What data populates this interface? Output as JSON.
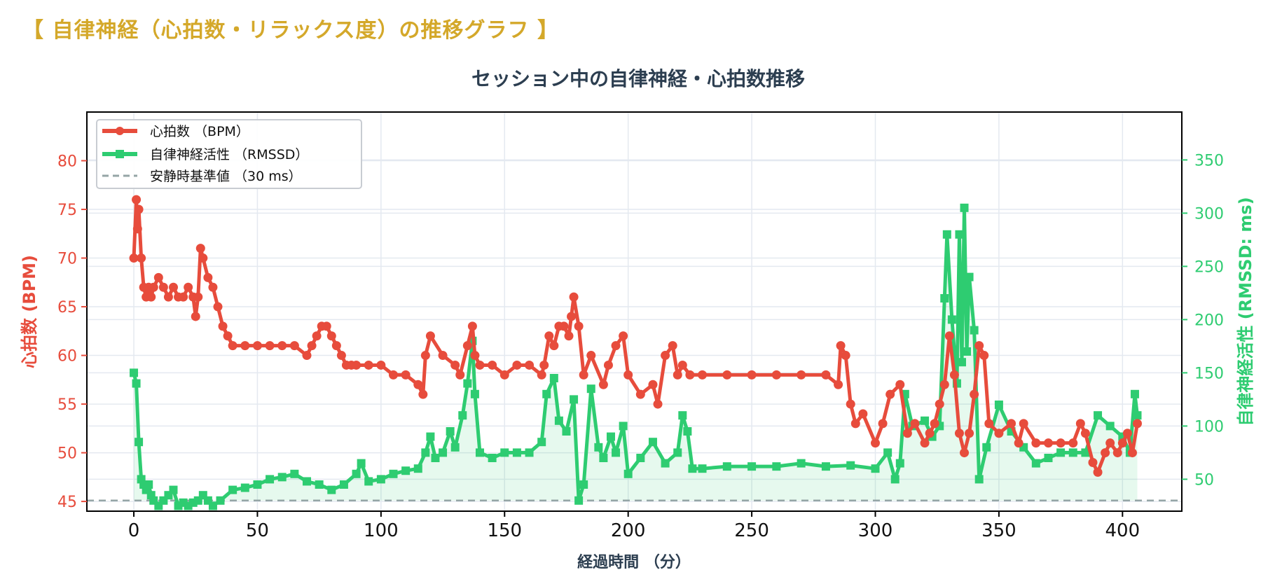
{
  "heading": "【 自律神経（心拍数・リラックス度）の推移グラフ 】",
  "colors": {
    "heading": "#d4a82a",
    "hr": "#e74c3c",
    "rmssd": "#2ecc71",
    "baseline": "#95a5a6",
    "title": "#2c3e50",
    "grid": "#e4e9f0"
  },
  "chart_data": {
    "type": "line",
    "title": "セッション中の自律神経・心拍数推移",
    "xlabel": "経過時間 （分）",
    "ylabel_left": "心拍数 (BPM)",
    "ylabel_right": "自律神経活性 (RMSSD: ms)",
    "xlim": [
      -19,
      424
    ],
    "ylim_left": [
      44,
      85
    ],
    "ylim_right": [
      20,
      395
    ],
    "xticks": [
      0,
      50,
      100,
      150,
      200,
      250,
      300,
      350,
      400
    ],
    "yticks_left": [
      45,
      50,
      55,
      60,
      65,
      70,
      75,
      80
    ],
    "yticks_right": [
      50,
      100,
      150,
      200,
      250,
      300,
      350
    ],
    "grid": true,
    "legend_position": "top-left",
    "series": [
      {
        "name": "心拍数 （BPM）",
        "axis": "left",
        "x": [
          0,
          1,
          1.5,
          2,
          3,
          4,
          5,
          6,
          7,
          8,
          10,
          12,
          14,
          16,
          18,
          20,
          22,
          24,
          25,
          26,
          27,
          28,
          30,
          32,
          34,
          36,
          38,
          40,
          45,
          50,
          55,
          60,
          65,
          70,
          72,
          74,
          76,
          78,
          80,
          82,
          84,
          86,
          88,
          90,
          95,
          100,
          105,
          110,
          115,
          117,
          118,
          120,
          125,
          130,
          132,
          135,
          137,
          138,
          140,
          145,
          150,
          155,
          160,
          165,
          166,
          168,
          170,
          172,
          174,
          176,
          177,
          178,
          180,
          182,
          185,
          190,
          192,
          195,
          198,
          200,
          205,
          210,
          212,
          215,
          218,
          220,
          222,
          225,
          230,
          240,
          250,
          260,
          270,
          280,
          285,
          286,
          288,
          290,
          292,
          295,
          300,
          303,
          306,
          310,
          313,
          316,
          320,
          322,
          324,
          326,
          328,
          330,
          332,
          334,
          336,
          338,
          340,
          342,
          344,
          346,
          350,
          355,
          358,
          360,
          365,
          370,
          375,
          380,
          383,
          385,
          388,
          390,
          393,
          395,
          398,
          400,
          402,
          404,
          406
        ],
        "values": [
          70,
          76,
          73,
          75,
          70,
          67,
          66,
          67,
          66,
          67,
          68,
          67,
          66,
          67,
          66,
          66,
          67,
          66,
          64,
          66,
          71,
          70,
          68,
          67,
          65,
          63,
          62,
          61,
          61,
          61,
          61,
          61,
          61,
          60,
          61,
          62,
          63,
          63,
          62,
          61,
          60,
          59,
          59,
          59,
          59,
          59,
          58,
          58,
          57,
          56,
          60,
          62,
          60,
          59,
          58,
          61,
          63,
          60,
          59,
          59,
          58,
          59,
          59,
          58,
          59,
          62,
          61,
          63,
          63,
          62,
          64,
          66,
          63,
          58,
          60,
          57,
          59,
          61,
          62,
          58,
          56,
          57,
          55,
          60,
          61,
          58,
          59,
          58,
          58,
          58,
          58,
          58,
          58,
          58,
          57,
          61,
          60,
          55,
          53,
          54,
          51,
          53,
          56,
          57,
          52,
          53,
          51,
          52,
          53,
          55,
          57,
          62,
          58,
          52,
          50,
          52,
          56,
          61,
          60,
          53,
          52,
          53,
          51,
          53,
          51,
          51,
          51,
          51,
          53,
          52,
          49,
          48,
          50,
          51,
          50,
          51,
          52,
          50,
          53
        ]
      },
      {
        "name": "自律神経活性 （RMSSD）",
        "axis": "right",
        "x": [
          0,
          1,
          2,
          3,
          4,
          5,
          6,
          7,
          8,
          10,
          12,
          14,
          16,
          18,
          20,
          22,
          24,
          26,
          28,
          30,
          32,
          35,
          40,
          45,
          50,
          55,
          60,
          65,
          70,
          75,
          80,
          85,
          90,
          92,
          95,
          100,
          105,
          110,
          115,
          118,
          120,
          122,
          125,
          128,
          130,
          133,
          135,
          137,
          138,
          140,
          145,
          150,
          155,
          160,
          165,
          167,
          170,
          172,
          175,
          178,
          180,
          182,
          185,
          188,
          190,
          193,
          195,
          198,
          200,
          205,
          210,
          215,
          220,
          222,
          224,
          226,
          230,
          240,
          250,
          260,
          270,
          280,
          290,
          300,
          305,
          308,
          310,
          312,
          315,
          320,
          323,
          326,
          328,
          329,
          331,
          333,
          334,
          335,
          336,
          337,
          338,
          340,
          342,
          345,
          350,
          355,
          360,
          365,
          370,
          375,
          380,
          385,
          390,
          395,
          400,
          403,
          405,
          406
        ],
        "values": [
          150,
          140,
          85,
          50,
          45,
          40,
          45,
          35,
          30,
          25,
          30,
          35,
          40,
          25,
          28,
          25,
          28,
          30,
          35,
          30,
          25,
          30,
          40,
          42,
          45,
          50,
          52,
          55,
          48,
          45,
          40,
          45,
          55,
          65,
          48,
          50,
          55,
          58,
          60,
          75,
          90,
          70,
          75,
          95,
          80,
          110,
          140,
          180,
          130,
          75,
          70,
          75,
          75,
          75,
          85,
          130,
          145,
          105,
          95,
          125,
          30,
          45,
          135,
          80,
          70,
          90,
          75,
          100,
          55,
          70,
          85,
          65,
          75,
          110,
          95,
          60,
          60,
          62,
          62,
          62,
          65,
          62,
          63,
          60,
          75,
          50,
          65,
          130,
          100,
          105,
          90,
          100,
          220,
          280,
          200,
          140,
          280,
          160,
          305,
          170,
          240,
          190,
          50,
          80,
          120,
          95,
          80,
          65,
          70,
          75,
          75,
          75,
          110,
          100,
          90,
          75,
          130,
          110
        ]
      },
      {
        "name": "安静時基準値 （30 ms）",
        "axis": "right",
        "type": "hline",
        "value": 30
      }
    ]
  }
}
